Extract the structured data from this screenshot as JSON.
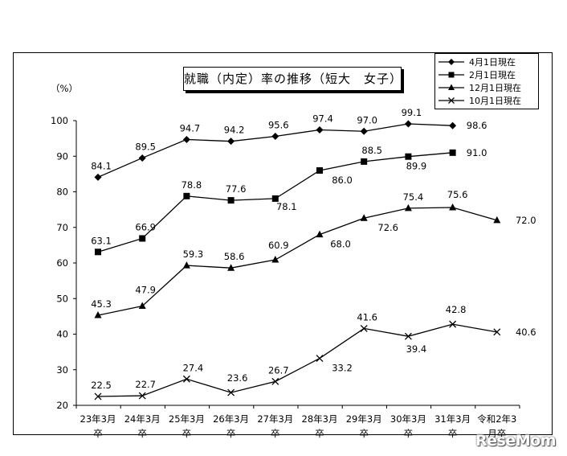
{
  "chart_data": {
    "type": "line",
    "title": "就職（内定）率の推移（短大　女子）",
    "ylabel": "（%）",
    "ylim": [
      20,
      100
    ],
    "yticks": [
      20,
      30,
      40,
      50,
      60,
      70,
      80,
      90,
      100
    ],
    "categories": [
      [
        "23年3月",
        "卒"
      ],
      [
        "24年3月",
        "卒"
      ],
      [
        "25年3月",
        "卒"
      ],
      [
        "26年3月",
        "卒"
      ],
      [
        "27年3月",
        "卒"
      ],
      [
        "28年3月",
        "卒"
      ],
      [
        "29年3月",
        "卒"
      ],
      [
        "30年3月",
        "卒"
      ],
      [
        "31年3月",
        "卒"
      ],
      [
        "令和2年3",
        "月卒"
      ]
    ],
    "legend_position": "top-right",
    "grid": false,
    "series": [
      {
        "name": "4月1日現在",
        "marker": "diamond",
        "values": [
          84.1,
          89.5,
          94.7,
          94.2,
          95.6,
          97.4,
          97.0,
          99.1,
          98.6,
          null
        ],
        "labels": [
          "84.1",
          "89.5",
          "94.7",
          "94.2",
          "95.6",
          "97.4",
          "97.0",
          "99.1",
          "98.6",
          null
        ]
      },
      {
        "name": "2月1日現在",
        "marker": "square",
        "values": [
          63.1,
          66.9,
          78.8,
          77.6,
          78.1,
          86.0,
          88.5,
          89.9,
          91.0,
          null
        ],
        "labels": [
          "63.1",
          "66.9",
          "78.8",
          "77.6",
          "78.1",
          "86.0",
          "88.5",
          "89.9",
          "91.0",
          null
        ]
      },
      {
        "name": "12月1日現在",
        "marker": "triangle",
        "values": [
          45.3,
          47.9,
          59.3,
          58.6,
          60.9,
          68.0,
          72.6,
          75.4,
          75.6,
          72.0
        ],
        "labels": [
          "45.3",
          "47.9",
          "59.3",
          "58.6",
          "60.9",
          "68.0",
          "72.6",
          "75.4",
          "75.6",
          "72.0"
        ]
      },
      {
        "name": "10月1日現在",
        "marker": "x",
        "values": [
          22.5,
          22.7,
          27.4,
          23.6,
          26.7,
          33.2,
          41.6,
          39.4,
          42.8,
          40.6
        ],
        "labels": [
          "22.5",
          "22.7",
          "27.4",
          "23.6",
          "26.7",
          "33.2",
          "41.6",
          "39.4",
          "42.8",
          "40.6"
        ]
      }
    ]
  },
  "watermark": "ReseMom"
}
